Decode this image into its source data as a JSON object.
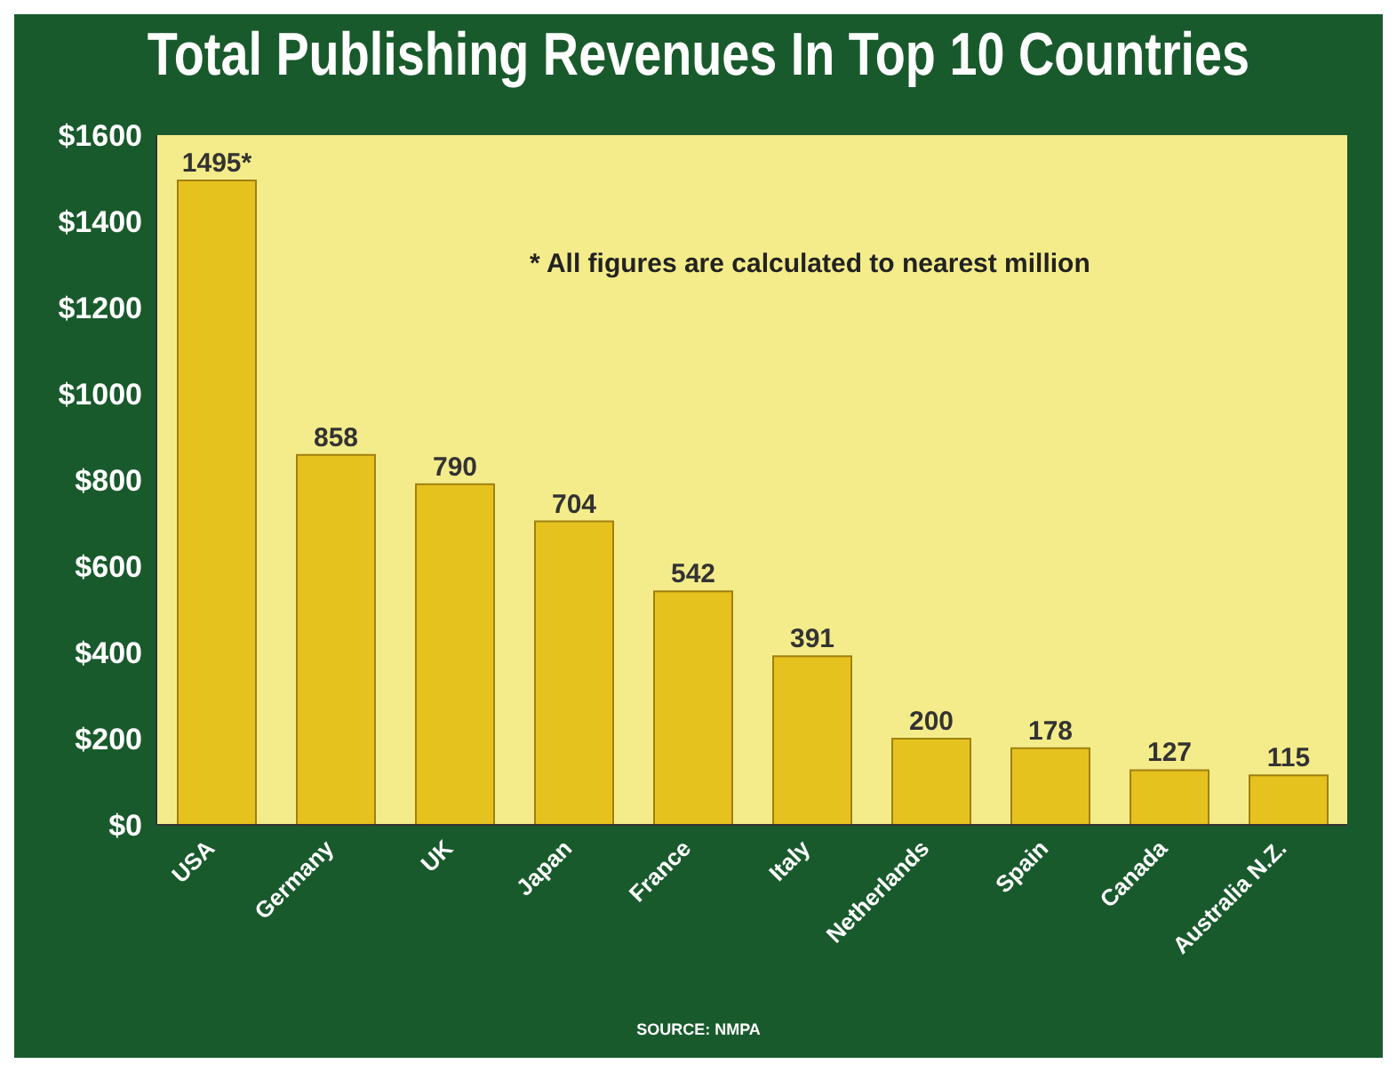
{
  "chart_data": {
    "type": "bar",
    "title": "Total Publishing Revenues In Top 10 Countries",
    "categories": [
      "USA",
      "Germany",
      "UK",
      "Japan",
      "France",
      "Italy",
      "Netherlands",
      "Spain",
      "Canada",
      "Australia N.Z."
    ],
    "values": [
      1495,
      858,
      790,
      704,
      542,
      391,
      200,
      178,
      127,
      115
    ],
    "value_labels": [
      "1495*",
      "858",
      "790",
      "704",
      "542",
      "391",
      "200",
      "178",
      "127",
      "115"
    ],
    "color": "#e6c21e",
    "ylim": [
      0,
      1600
    ],
    "yticks": [
      {
        "value": 0,
        "label": "$0"
      },
      {
        "value": 200,
        "label": "$200"
      },
      {
        "value": 400,
        "label": "$400"
      },
      {
        "value": 600,
        "label": "$600"
      },
      {
        "value": 800,
        "label": "$800"
      },
      {
        "value": 1000,
        "label": "$1000"
      },
      {
        "value": 1200,
        "label": "$1200"
      },
      {
        "value": 1400,
        "label": "$1400"
      },
      {
        "value": 1600,
        "label": "$1600"
      }
    ],
    "annotations": [
      "* All figures are calculated to nearest million",
      "SOURCE: NMPA"
    ]
  }
}
